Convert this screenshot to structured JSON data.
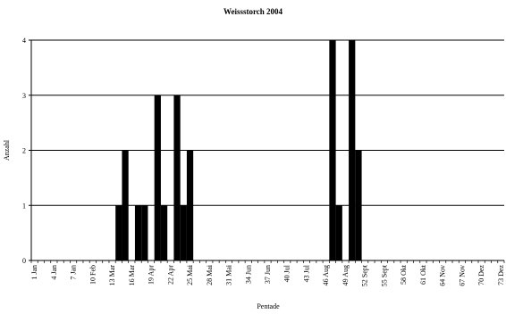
{
  "chart_data": {
    "type": "bar",
    "title": "Weissstorch 2004",
    "xlabel": "Pentade",
    "ylabel": "Anzahl",
    "ylim": [
      0,
      4
    ],
    "yticks": [
      0,
      1,
      2,
      3,
      4
    ],
    "grid": true,
    "bar_color": "#000000",
    "grid_color": "#000000",
    "x_count": 73,
    "x_tick_labels": [
      {
        "x": 1,
        "label": "1 Jan"
      },
      {
        "x": 4,
        "label": "4 Jan"
      },
      {
        "x": 7,
        "label": "7 Jan"
      },
      {
        "x": 10,
        "label": "10 Feb"
      },
      {
        "x": 13,
        "label": "13 Mar"
      },
      {
        "x": 16,
        "label": "16 Mar"
      },
      {
        "x": 19,
        "label": "19 Apr"
      },
      {
        "x": 22,
        "label": "22 Apr"
      },
      {
        "x": 25,
        "label": "25 Mai"
      },
      {
        "x": 28,
        "label": "28 Mai"
      },
      {
        "x": 31,
        "label": "31 Mai"
      },
      {
        "x": 34,
        "label": "34 Jun"
      },
      {
        "x": 37,
        "label": "37 Jun"
      },
      {
        "x": 40,
        "label": "40 Jul"
      },
      {
        "x": 43,
        "label": "43 Jul"
      },
      {
        "x": 46,
        "label": "46 Aug"
      },
      {
        "x": 49,
        "label": "49 Aug"
      },
      {
        "x": 52,
        "label": "52 Sept"
      },
      {
        "x": 55,
        "label": "55 Sept"
      },
      {
        "x": 58,
        "label": "58 Okt"
      },
      {
        "x": 61,
        "label": "61 Okt"
      },
      {
        "x": 64,
        "label": "64 Nov"
      },
      {
        "x": 67,
        "label": "67 Nov"
      },
      {
        "x": 70,
        "label": "70 Dez"
      },
      {
        "x": 73,
        "label": "73 Dez"
      }
    ],
    "bars": [
      {
        "x": 14,
        "value": 1
      },
      {
        "x": 15,
        "value": 2
      },
      {
        "x": 17,
        "value": 1
      },
      {
        "x": 18,
        "value": 1
      },
      {
        "x": 20,
        "value": 3
      },
      {
        "x": 21,
        "value": 1
      },
      {
        "x": 23,
        "value": 3
      },
      {
        "x": 24,
        "value": 1
      },
      {
        "x": 25,
        "value": 2
      },
      {
        "x": 47,
        "value": 4
      },
      {
        "x": 48,
        "value": 1
      },
      {
        "x": 50,
        "value": 4
      },
      {
        "x": 51,
        "value": 2
      }
    ]
  }
}
